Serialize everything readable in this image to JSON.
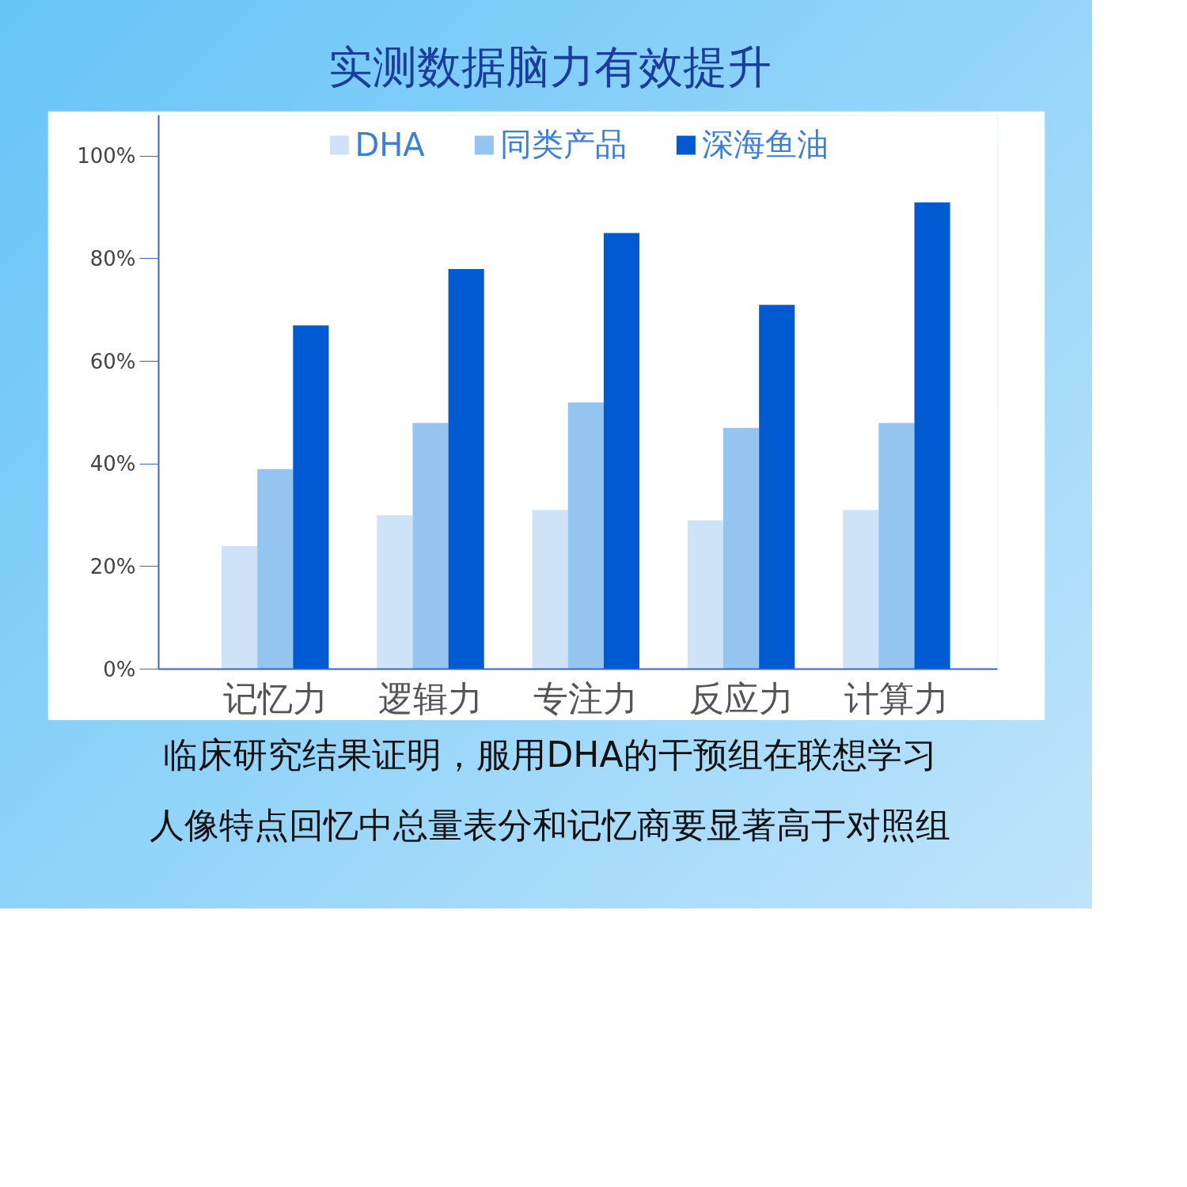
{
  "chart_data": {
    "type": "bar",
    "title": "实测数据脑力有效提升",
    "categories": [
      "记忆力",
      "逻辑力",
      "专注力",
      "反应力",
      "计算力"
    ],
    "series": [
      {
        "name": "DHA",
        "color": "#cfe3f8",
        "values": [
          24,
          30,
          31,
          29,
          31
        ]
      },
      {
        "name": "同类产品",
        "color": "#94c5f0",
        "values": [
          39,
          48,
          52,
          47,
          48
        ]
      },
      {
        "name": "深海鱼油",
        "color": "#005bd3",
        "values": [
          67,
          78,
          85,
          71,
          91
        ]
      }
    ],
    "ylim": [
      0,
      108
    ],
    "yticks": [
      {
        "value": 0,
        "label": "0%"
      },
      {
        "value": 20,
        "label": "20%"
      },
      {
        "value": 40,
        "label": "40%"
      },
      {
        "value": 60,
        "label": "60%"
      },
      {
        "value": 80,
        "label": "80%"
      },
      {
        "value": 100,
        "label": "100%"
      }
    ],
    "grid": false,
    "legend": "top",
    "annotations": [
      "临床研究结果证明，服用DHA的干预组在联想学习",
      "人像特点回忆中总量表分和记忆商要显著高于对照组"
    ]
  }
}
